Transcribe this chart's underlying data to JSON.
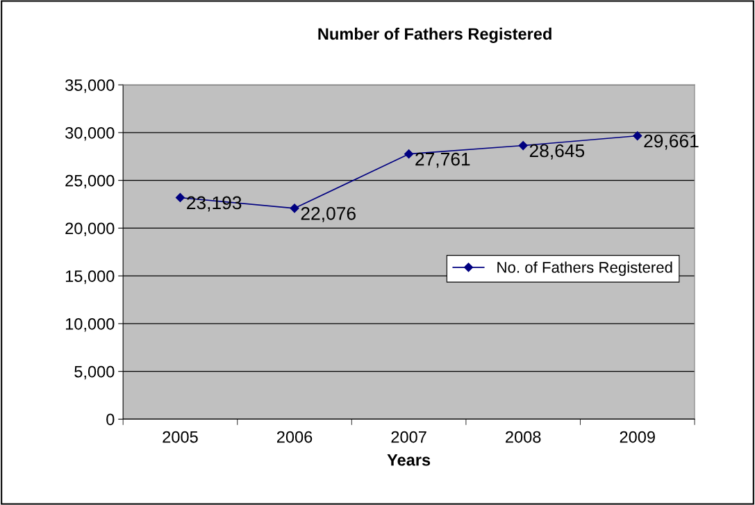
{
  "chart_data": {
    "type": "line",
    "title": "Number of Fathers Registered",
    "xlabel": "Years",
    "categories": [
      "2005",
      "2006",
      "2007",
      "2008",
      "2009"
    ],
    "series": [
      {
        "name": "No. of Fathers Registered",
        "color": "#000080",
        "values": [
          23193,
          22076,
          27761,
          28645,
          29661
        ],
        "value_labels": [
          "23,193",
          "22,076",
          "27,761",
          "28,645",
          "29,661"
        ]
      }
    ],
    "ylim": [
      0,
      35000
    ],
    "yticks": [
      {
        "value": 0,
        "label": "0"
      },
      {
        "value": 5000,
        "label": "5,000"
      },
      {
        "value": 10000,
        "label": "10,000"
      },
      {
        "value": 15000,
        "label": "15,000"
      },
      {
        "value": 20000,
        "label": "20,000"
      },
      {
        "value": 25000,
        "label": "25,000"
      },
      {
        "value": 30000,
        "label": "30,000"
      },
      {
        "value": 35000,
        "label": "35,000"
      }
    ],
    "grid": "y",
    "legend": "right",
    "marker": "diamond",
    "line_style": "solid"
  }
}
